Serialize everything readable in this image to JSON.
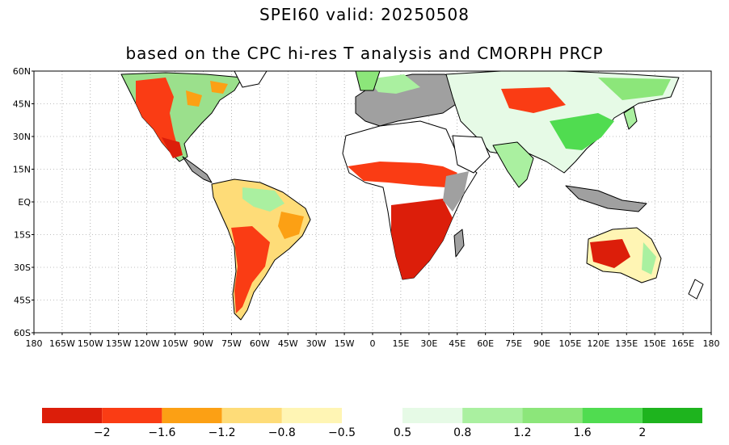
{
  "title_line1": "SPEI60   valid: 20250508",
  "title_line2": "based on the CPC hi-res T analysis and CMORPH PRCP",
  "lat_labels": [
    "60N",
    "45N",
    "30N",
    "15N",
    "EQ",
    "15S",
    "30S",
    "45S",
    "60S"
  ],
  "lon_labels": [
    "180",
    "165W",
    "150W",
    "135W",
    "120W",
    "105W",
    "90W",
    "75W",
    "60W",
    "45W",
    "30W",
    "15W",
    "0",
    "15E",
    "30E",
    "45E",
    "60E",
    "75E",
    "90E",
    "105E",
    "120E",
    "135E",
    "150E",
    "165E",
    "180"
  ],
  "colorbar": {
    "dry_colors": [
      "#dc1e0a",
      "#fa3c14",
      "#fca014",
      "#fedc78",
      "#fff5b4"
    ],
    "wet_colors": [
      "#e6fae6",
      "#aaf0a0",
      "#8ce67a",
      "#50dc50",
      "#1eb41e"
    ],
    "dry_labels": [
      "−2",
      "−1.6",
      "−1.2",
      "−0.8",
      "−0.5"
    ],
    "wet_labels": [
      "0.5",
      "0.8",
      "1.2",
      "1.6",
      "2"
    ]
  },
  "map_colors": {
    "land_outline": "#000000",
    "no_data_gray": "#a0a0a0",
    "graticule": "#808080"
  }
}
